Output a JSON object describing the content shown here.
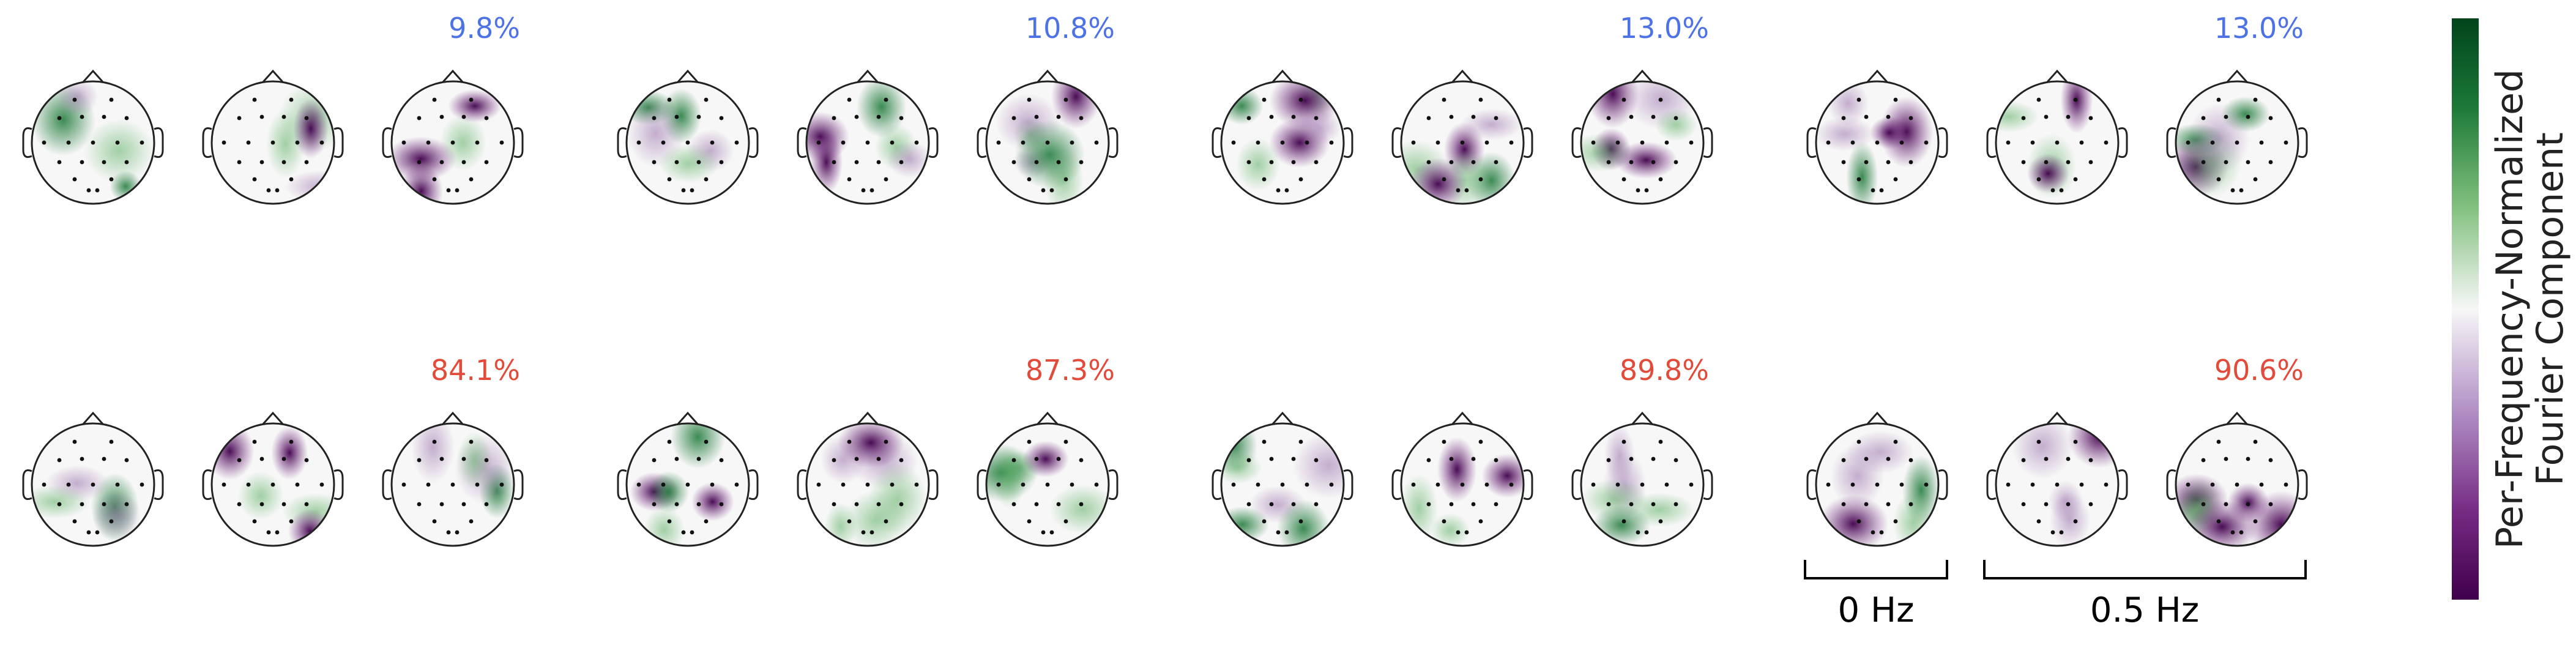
{
  "figure": {
    "groups": [
      {
        "top_percent": "9.8%",
        "bottom_percent": "84.1%"
      },
      {
        "top_percent": "10.8%",
        "bottom_percent": "87.3%"
      },
      {
        "top_percent": "13.0%",
        "bottom_percent": "89.8%"
      },
      {
        "top_percent": "13.0%",
        "bottom_percent": "90.6%"
      }
    ],
    "top_percent_color": "#4c72e6",
    "bottom_percent_color": "#e24b3a",
    "bracket_labels": {
      "left": "0 Hz",
      "right": "0.5 Hz"
    },
    "colorbar": {
      "label_line1": "Per-Frequency-Normalized",
      "label_line2": "Fourier Component",
      "colormap": "PRGn",
      "color_top": "#00441b",
      "color_mid": "#f7f7f7",
      "color_bottom": "#40004b"
    }
  }
}
